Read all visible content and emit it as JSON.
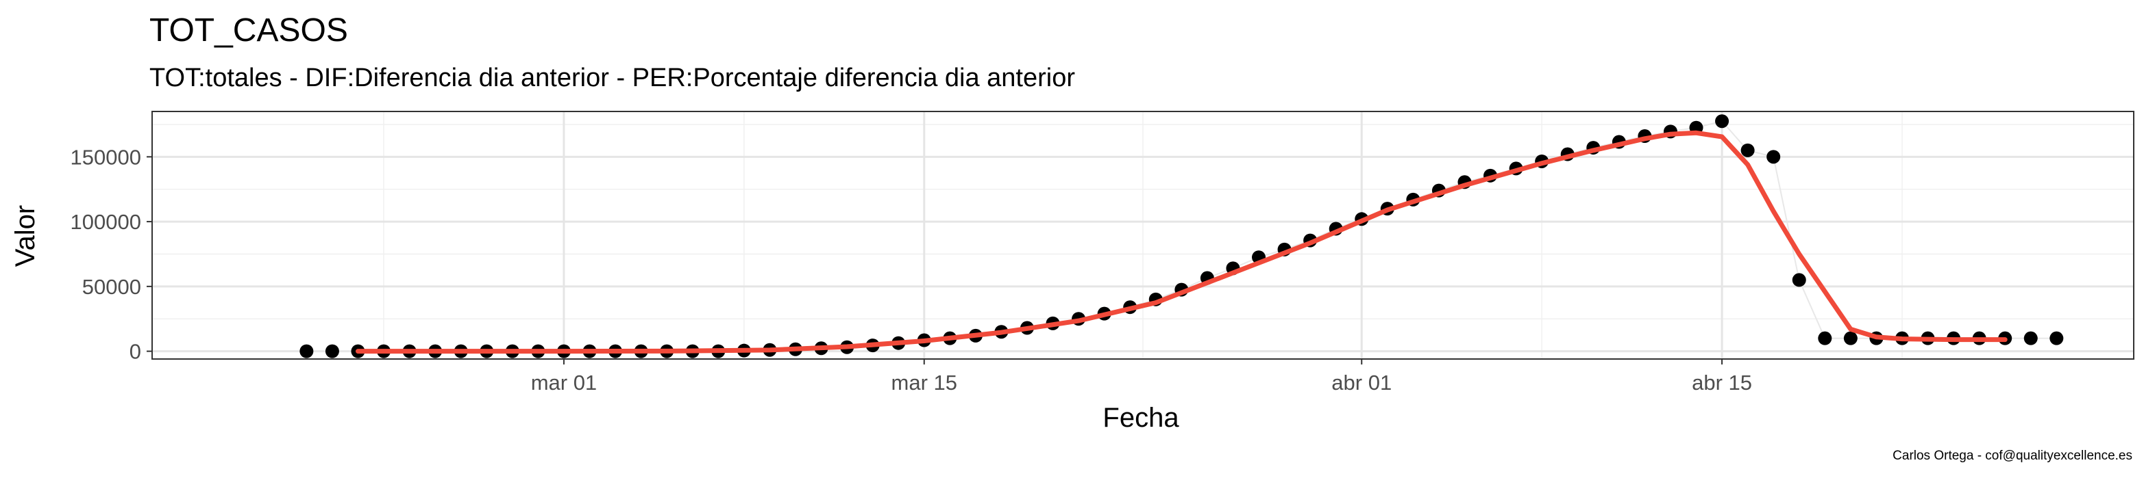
{
  "chart_data": {
    "type": "scatter",
    "title": "TOT_CASOS",
    "subtitle": "TOT:totales - DIF:Diferencia dia anterior - PER:Porcentaje diferencia dia anterior",
    "xlabel": "Fecha",
    "ylabel": "Valor",
    "caption": "Carlos Ortega - cof@qualityexcellence.es",
    "x_tick_labels": [
      "mar 01",
      "mar 15",
      "abr 01",
      "abr 15"
    ],
    "y_tick_labels": [
      "0",
      "50000",
      "100000",
      "150000"
    ],
    "y_ticks": [
      0,
      50000,
      100000,
      150000
    ],
    "ylim": [
      -6000,
      185000
    ],
    "xlim": [
      "2020-02-14",
      "2020-05-01"
    ],
    "grid": true,
    "points_color": "#000000",
    "smooth_color": "#f04a3a",
    "series": [
      {
        "values": [
          [
            "2020-02-20",
            0
          ],
          [
            "2020-02-21",
            0
          ],
          [
            "2020-02-22",
            0
          ],
          [
            "2020-02-23",
            0
          ],
          [
            "2020-02-24",
            0
          ],
          [
            "2020-02-25",
            0
          ],
          [
            "2020-02-26",
            0
          ],
          [
            "2020-02-27",
            0
          ],
          [
            "2020-02-28",
            0
          ],
          [
            "2020-02-29",
            0
          ],
          [
            "2020-03-01",
            0
          ],
          [
            "2020-03-02",
            0
          ],
          [
            "2020-03-03",
            0
          ],
          [
            "2020-03-04",
            0
          ],
          [
            "2020-03-05",
            0
          ],
          [
            "2020-03-06",
            0
          ],
          [
            "2020-03-07",
            0
          ],
          [
            "2020-03-08",
            500
          ],
          [
            "2020-03-09",
            1000
          ],
          [
            "2020-03-10",
            1500
          ],
          [
            "2020-03-11",
            2300
          ],
          [
            "2020-03-12",
            3100
          ],
          [
            "2020-03-13",
            4500
          ],
          [
            "2020-03-14",
            6300
          ],
          [
            "2020-03-15",
            8500
          ],
          [
            "2020-03-16",
            10000
          ],
          [
            "2020-03-17",
            12000
          ],
          [
            "2020-03-18",
            15000
          ],
          [
            "2020-03-19",
            18000
          ],
          [
            "2020-03-20",
            21500
          ],
          [
            "2020-03-21",
            25000
          ],
          [
            "2020-03-22",
            29000
          ],
          [
            "2020-03-23",
            34000
          ],
          [
            "2020-03-24",
            40000
          ],
          [
            "2020-03-25",
            47500
          ],
          [
            "2020-03-26",
            56500
          ],
          [
            "2020-03-27",
            64000
          ],
          [
            "2020-03-28",
            72500
          ],
          [
            "2020-03-29",
            78500
          ],
          [
            "2020-03-30",
            85500
          ],
          [
            "2020-03-31",
            94500
          ],
          [
            "2020-04-01",
            102000
          ],
          [
            "2020-04-02",
            110000
          ],
          [
            "2020-04-03",
            117000
          ],
          [
            "2020-04-04",
            124000
          ],
          [
            "2020-04-05",
            130500
          ],
          [
            "2020-04-06",
            135500
          ],
          [
            "2020-04-07",
            141000
          ],
          [
            "2020-04-08",
            146500
          ],
          [
            "2020-04-09",
            152000
          ],
          [
            "2020-04-10",
            157000
          ],
          [
            "2020-04-11",
            161500
          ],
          [
            "2020-04-12",
            166000
          ],
          [
            "2020-04-13",
            169500
          ],
          [
            "2020-04-14",
            172500
          ],
          [
            "2020-04-15",
            177500
          ],
          [
            "2020-04-16",
            155000
          ],
          [
            "2020-04-17",
            150000
          ],
          [
            "2020-04-18",
            55000
          ],
          [
            "2020-04-19",
            10000
          ],
          [
            "2020-04-20",
            10000
          ],
          [
            "2020-04-21",
            10000
          ],
          [
            "2020-04-22",
            10000
          ],
          [
            "2020-04-23",
            10000
          ],
          [
            "2020-04-24",
            10000
          ],
          [
            "2020-04-25",
            10000
          ],
          [
            "2020-04-26",
            10000
          ],
          [
            "2020-04-27",
            10000
          ],
          [
            "2020-04-28",
            10000
          ]
        ]
      }
    ],
    "smooth_line": [
      [
        "2020-02-22",
        0
      ],
      [
        "2020-02-25",
        0
      ],
      [
        "2020-03-01",
        0
      ],
      [
        "2020-03-05",
        100
      ],
      [
        "2020-03-09",
        900
      ],
      [
        "2020-03-12",
        3500
      ],
      [
        "2020-03-15",
        8000
      ],
      [
        "2020-03-18",
        14500
      ],
      [
        "2020-03-21",
        23500
      ],
      [
        "2020-03-24",
        37500
      ],
      [
        "2020-03-27",
        60500
      ],
      [
        "2020-03-30",
        83500
      ],
      [
        "2020-04-02",
        109000
      ],
      [
        "2020-04-05",
        128000
      ],
      [
        "2020-04-08",
        145000
      ],
      [
        "2020-04-10",
        155000
      ],
      [
        "2020-04-12",
        164000
      ],
      [
        "2020-04-13",
        167500
      ],
      [
        "2020-04-14",
        168500
      ],
      [
        "2020-04-15",
        165500
      ],
      [
        "2020-04-16",
        144000
      ],
      [
        "2020-04-17",
        108000
      ],
      [
        "2020-04-18",
        75000
      ],
      [
        "2020-04-19",
        46000
      ],
      [
        "2020-04-20",
        17000
      ],
      [
        "2020-04-21",
        11000
      ],
      [
        "2020-04-22",
        9500
      ],
      [
        "2020-04-24",
        9000
      ],
      [
        "2020-04-26",
        9000
      ]
    ]
  }
}
